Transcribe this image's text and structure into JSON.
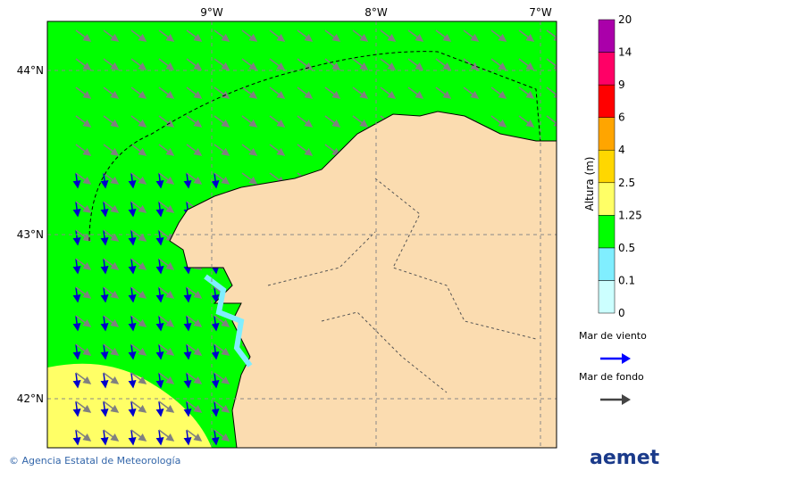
{
  "map": {
    "lon_ticks": [
      "9°W",
      "8°W",
      "7°W"
    ],
    "lat_ticks": [
      "44°N",
      "43°N",
      "42°N"
    ]
  },
  "colorbar": {
    "title": "Altura (m)",
    "levels": [
      "0",
      "0.1",
      "0.5",
      "1.25",
      "2.5",
      "4",
      "6",
      "9",
      "14",
      "20"
    ],
    "colors": [
      "#ccffff",
      "#80eeff",
      "#00ff00",
      "#ffff66",
      "#ffd700",
      "#ffa500",
      "#ff0000",
      "#ff0066",
      "#aa00aa"
    ]
  },
  "legend": [
    {
      "label": "Mar de viento",
      "color": "#0000ff"
    },
    {
      "label": "Mar de fondo",
      "color": "#444444"
    }
  ],
  "footer": {
    "credit": "© Agencia Estatal de Meteorología",
    "logo": "aemet"
  }
}
